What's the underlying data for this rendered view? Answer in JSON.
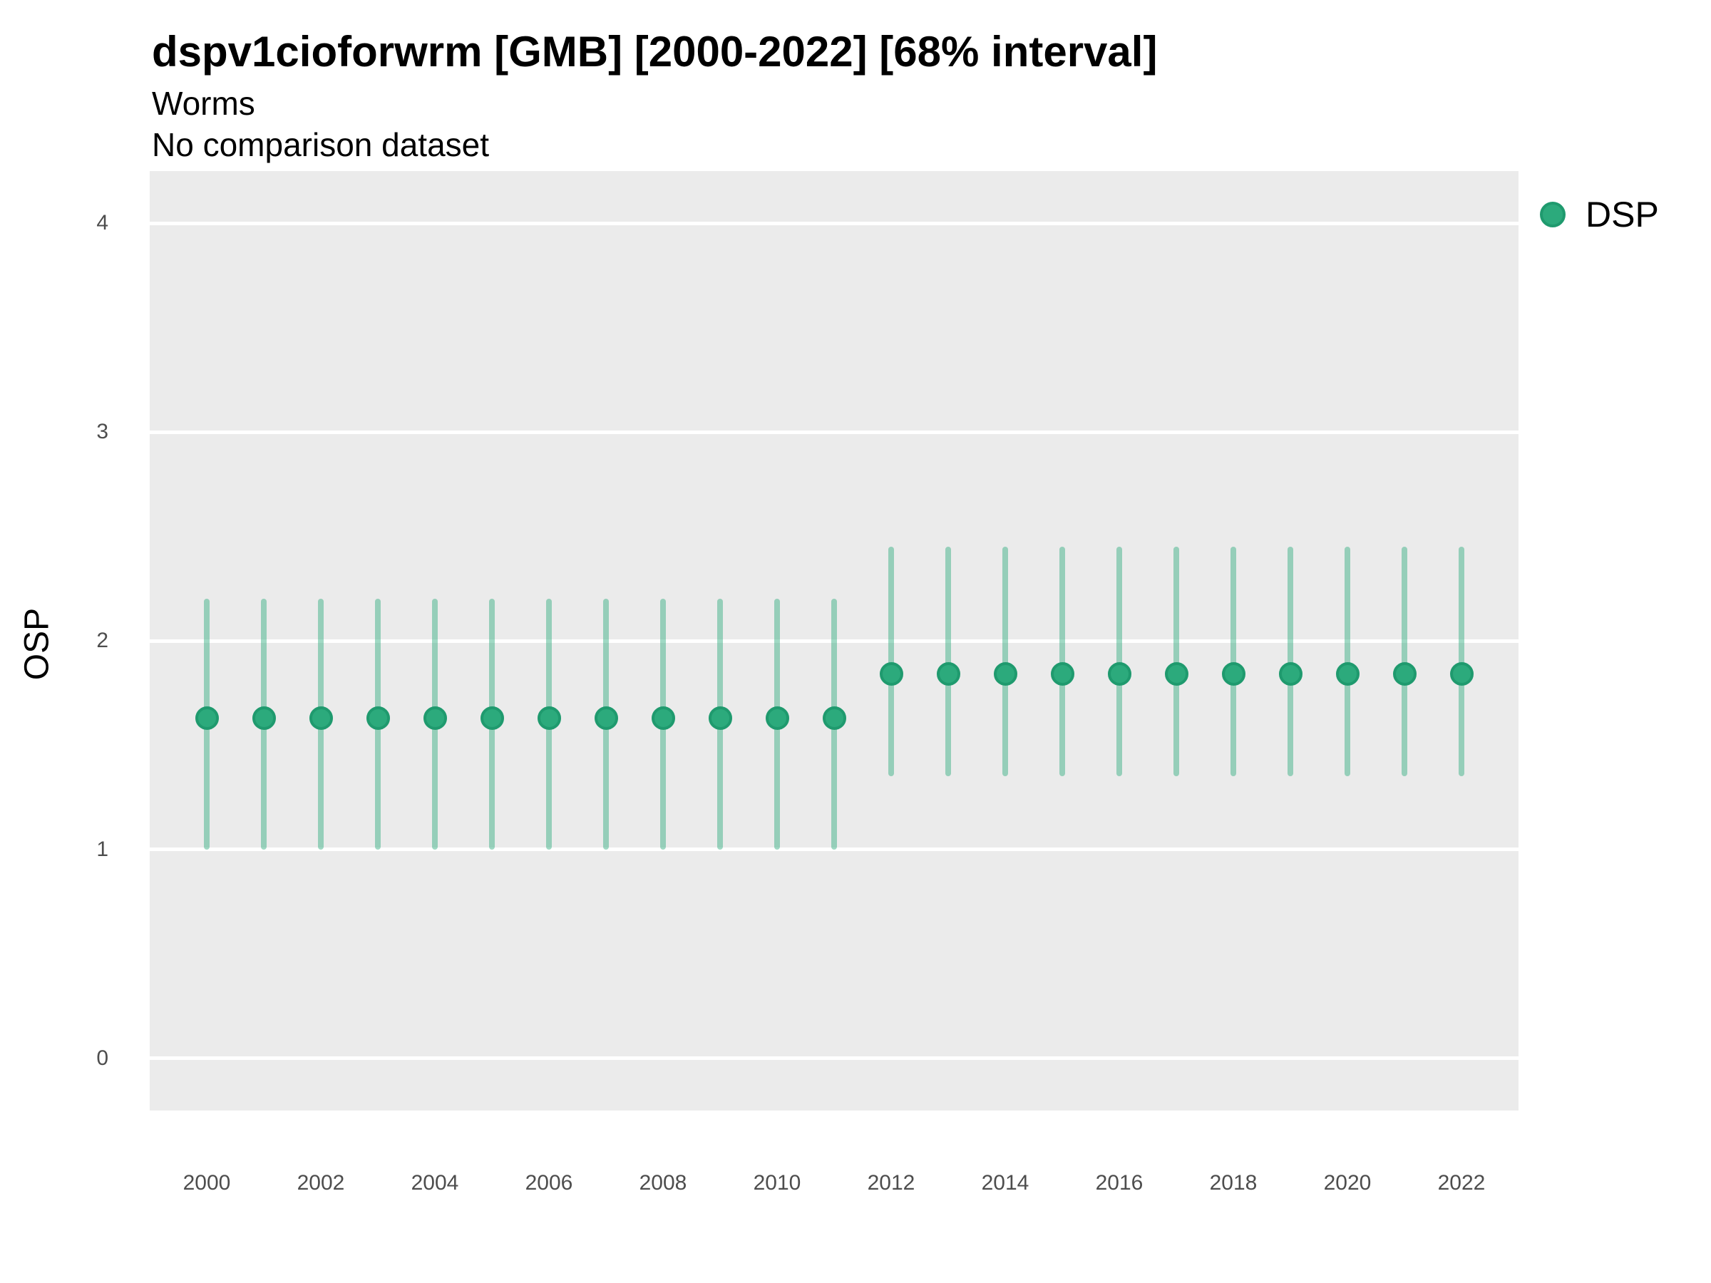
{
  "header": {
    "title": "dspv1cioforwrm [GMB] [2000-2022] [68% interval]",
    "subtitle": "Worms",
    "comparison_note": "No comparison dataset"
  },
  "chart_data": {
    "type": "scatter",
    "title": "dspv1cioforwrm [GMB] [2000-2022] [68% interval]",
    "subtitle": "Worms",
    "note": "No comparison dataset",
    "xlabel": "",
    "ylabel": "OSP",
    "interval_label": "68% interval",
    "legend_position": "right",
    "grid": "horizontal-major-only",
    "background_color": "#ebebeb",
    "gridline_color": "#ffffff",
    "xlim": [
      1999,
      2023
    ],
    "ylim": [
      -0.25,
      4.25
    ],
    "x_ticks": [
      2000,
      2002,
      2004,
      2006,
      2008,
      2010,
      2012,
      2014,
      2016,
      2018,
      2020,
      2022
    ],
    "y_ticks": [
      0,
      1,
      2,
      3,
      4
    ],
    "series": [
      {
        "name": "DSP",
        "color": "#2caa7c",
        "point_border_color": "#1f9a6e",
        "interval_color": "rgba(44, 170, 124, 0.45)",
        "points": [
          {
            "x": 2000,
            "y": 1.63,
            "lo": 1.0,
            "hi": 2.2
          },
          {
            "x": 2001,
            "y": 1.63,
            "lo": 1.0,
            "hi": 2.2
          },
          {
            "x": 2002,
            "y": 1.63,
            "lo": 1.0,
            "hi": 2.2
          },
          {
            "x": 2003,
            "y": 1.63,
            "lo": 1.0,
            "hi": 2.2
          },
          {
            "x": 2004,
            "y": 1.63,
            "lo": 1.0,
            "hi": 2.2
          },
          {
            "x": 2005,
            "y": 1.63,
            "lo": 1.0,
            "hi": 2.2
          },
          {
            "x": 2006,
            "y": 1.63,
            "lo": 1.0,
            "hi": 2.2
          },
          {
            "x": 2007,
            "y": 1.63,
            "lo": 1.0,
            "hi": 2.2
          },
          {
            "x": 2008,
            "y": 1.63,
            "lo": 1.0,
            "hi": 2.2
          },
          {
            "x": 2009,
            "y": 1.63,
            "lo": 1.0,
            "hi": 2.2
          },
          {
            "x": 2010,
            "y": 1.63,
            "lo": 1.0,
            "hi": 2.2
          },
          {
            "x": 2011,
            "y": 1.63,
            "lo": 1.0,
            "hi": 2.2
          },
          {
            "x": 2012,
            "y": 1.84,
            "lo": 1.35,
            "hi": 2.45
          },
          {
            "x": 2013,
            "y": 1.84,
            "lo": 1.35,
            "hi": 2.45
          },
          {
            "x": 2014,
            "y": 1.84,
            "lo": 1.35,
            "hi": 2.45
          },
          {
            "x": 2015,
            "y": 1.84,
            "lo": 1.35,
            "hi": 2.45
          },
          {
            "x": 2016,
            "y": 1.84,
            "lo": 1.35,
            "hi": 2.45
          },
          {
            "x": 2017,
            "y": 1.84,
            "lo": 1.35,
            "hi": 2.45
          },
          {
            "x": 2018,
            "y": 1.84,
            "lo": 1.35,
            "hi": 2.45
          },
          {
            "x": 2019,
            "y": 1.84,
            "lo": 1.35,
            "hi": 2.45
          },
          {
            "x": 2020,
            "y": 1.84,
            "lo": 1.35,
            "hi": 2.45
          },
          {
            "x": 2021,
            "y": 1.84,
            "lo": 1.35,
            "hi": 2.45
          },
          {
            "x": 2022,
            "y": 1.84,
            "lo": 1.35,
            "hi": 2.45
          }
        ]
      }
    ]
  }
}
